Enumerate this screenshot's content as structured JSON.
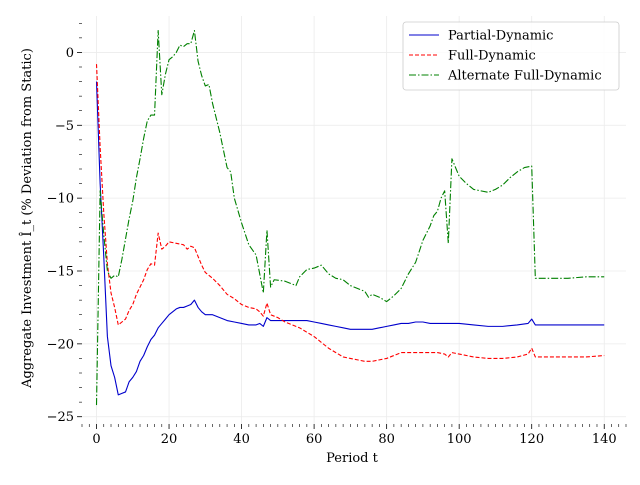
{
  "chart_data": {
    "type": "line",
    "title": "",
    "xlabel": "Period t",
    "ylabel": "Aggregate Investment Î_t (% Deviation from Static)",
    "xlim": [
      -4,
      146
    ],
    "ylim": [
      -25.5,
      2.5
    ],
    "xticks": [
      0,
      20,
      40,
      60,
      80,
      100,
      120,
      140
    ],
    "yticks": [
      -25,
      -20,
      -15,
      -10,
      -5,
      0
    ],
    "grid": true,
    "legend_position": "top-right",
    "series": [
      {
        "name": "Partial-Dynamic",
        "color": "#0000cc",
        "style": "solid",
        "points": [
          [
            0,
            -2
          ],
          [
            1,
            -9
          ],
          [
            2,
            -14
          ],
          [
            3,
            -19.5
          ],
          [
            4,
            -21.5
          ],
          [
            5,
            -22.3
          ],
          [
            6,
            -23.5
          ],
          [
            7,
            -23.4
          ],
          [
            8,
            -23.3
          ],
          [
            9,
            -22.6
          ],
          [
            10,
            -22.3
          ],
          [
            11,
            -21.9
          ],
          [
            12,
            -21.2
          ],
          [
            13,
            -20.8
          ],
          [
            14,
            -20.2
          ],
          [
            15,
            -19.7
          ],
          [
            16,
            -19.4
          ],
          [
            17,
            -18.9
          ],
          [
            18,
            -18.6
          ],
          [
            19,
            -18.3
          ],
          [
            20,
            -18.0
          ],
          [
            21,
            -17.8
          ],
          [
            22,
            -17.6
          ],
          [
            23,
            -17.5
          ],
          [
            24,
            -17.5
          ],
          [
            25,
            -17.4
          ],
          [
            26,
            -17.3
          ],
          [
            27,
            -17.0
          ],
          [
            28,
            -17.5
          ],
          [
            29,
            -17.8
          ],
          [
            30,
            -18.0
          ],
          [
            32,
            -18.0
          ],
          [
            34,
            -18.2
          ],
          [
            36,
            -18.4
          ],
          [
            38,
            -18.5
          ],
          [
            40,
            -18.6
          ],
          [
            42,
            -18.7
          ],
          [
            44,
            -18.7
          ],
          [
            45,
            -18.6
          ],
          [
            46,
            -18.8
          ],
          [
            47,
            -18.2
          ],
          [
            48,
            -18.4
          ],
          [
            50,
            -18.4
          ],
          [
            52,
            -18.4
          ],
          [
            54,
            -18.4
          ],
          [
            56,
            -18.4
          ],
          [
            58,
            -18.4
          ],
          [
            60,
            -18.5
          ],
          [
            62,
            -18.6
          ],
          [
            64,
            -18.7
          ],
          [
            66,
            -18.8
          ],
          [
            68,
            -18.9
          ],
          [
            70,
            -19.0
          ],
          [
            72,
            -19.0
          ],
          [
            74,
            -19.0
          ],
          [
            76,
            -19.0
          ],
          [
            78,
            -18.9
          ],
          [
            80,
            -18.8
          ],
          [
            82,
            -18.7
          ],
          [
            84,
            -18.6
          ],
          [
            86,
            -18.6
          ],
          [
            88,
            -18.5
          ],
          [
            90,
            -18.5
          ],
          [
            92,
            -18.6
          ],
          [
            94,
            -18.6
          ],
          [
            96,
            -18.6
          ],
          [
            98,
            -18.6
          ],
          [
            100,
            -18.6
          ],
          [
            104,
            -18.7
          ],
          [
            108,
            -18.8
          ],
          [
            112,
            -18.8
          ],
          [
            116,
            -18.7
          ],
          [
            119,
            -18.6
          ],
          [
            120,
            -18.3
          ],
          [
            121,
            -18.7
          ],
          [
            125,
            -18.7
          ],
          [
            130,
            -18.7
          ],
          [
            135,
            -18.7
          ],
          [
            140,
            -18.7
          ]
        ]
      },
      {
        "name": "Full-Dynamic",
        "color": "#ff0000",
        "style": "dashed",
        "points": [
          [
            0,
            -0.8
          ],
          [
            1,
            -6.5
          ],
          [
            2,
            -11
          ],
          [
            3,
            -14.5
          ],
          [
            4,
            -16.5
          ],
          [
            5,
            -17.5
          ],
          [
            6,
            -18.7
          ],
          [
            7,
            -18.5
          ],
          [
            8,
            -18.3
          ],
          [
            9,
            -17.7
          ],
          [
            10,
            -17.3
          ],
          [
            11,
            -16.6
          ],
          [
            12,
            -16.1
          ],
          [
            13,
            -15.6
          ],
          [
            14,
            -14.9
          ],
          [
            15,
            -14.5
          ],
          [
            16,
            -14.6
          ],
          [
            17,
            -12.4
          ],
          [
            18,
            -13.5
          ],
          [
            19,
            -13.3
          ],
          [
            20,
            -13.0
          ],
          [
            22,
            -13.1
          ],
          [
            24,
            -13.2
          ],
          [
            25,
            -13.5
          ],
          [
            26,
            -13.3
          ],
          [
            27,
            -13.4
          ],
          [
            28,
            -14.0
          ],
          [
            29,
            -14.6
          ],
          [
            30,
            -15.1
          ],
          [
            32,
            -15.5
          ],
          [
            34,
            -16.0
          ],
          [
            36,
            -16.6
          ],
          [
            38,
            -16.9
          ],
          [
            40,
            -17.3
          ],
          [
            42,
            -17.5
          ],
          [
            44,
            -17.6
          ],
          [
            45,
            -17.8
          ],
          [
            46,
            -18.1
          ],
          [
            47,
            -17.2
          ],
          [
            48,
            -18.0
          ],
          [
            50,
            -18.2
          ],
          [
            52,
            -18.5
          ],
          [
            54,
            -18.7
          ],
          [
            56,
            -18.9
          ],
          [
            58,
            -19.2
          ],
          [
            60,
            -19.5
          ],
          [
            62,
            -19.9
          ],
          [
            64,
            -20.3
          ],
          [
            66,
            -20.6
          ],
          [
            68,
            -20.9
          ],
          [
            70,
            -21.0
          ],
          [
            72,
            -21.1
          ],
          [
            74,
            -21.2
          ],
          [
            76,
            -21.2
          ],
          [
            78,
            -21.1
          ],
          [
            80,
            -21.0
          ],
          [
            82,
            -20.8
          ],
          [
            84,
            -20.6
          ],
          [
            86,
            -20.6
          ],
          [
            88,
            -20.6
          ],
          [
            90,
            -20.6
          ],
          [
            92,
            -20.6
          ],
          [
            94,
            -20.6
          ],
          [
            96,
            -20.7
          ],
          [
            97,
            -20.9
          ],
          [
            98,
            -20.6
          ],
          [
            100,
            -20.7
          ],
          [
            104,
            -20.9
          ],
          [
            108,
            -21.0
          ],
          [
            112,
            -21.0
          ],
          [
            116,
            -20.9
          ],
          [
            119,
            -20.7
          ],
          [
            120,
            -20.3
          ],
          [
            121,
            -20.9
          ],
          [
            125,
            -20.9
          ],
          [
            130,
            -20.9
          ],
          [
            135,
            -20.9
          ],
          [
            140,
            -20.8
          ]
        ]
      },
      {
        "name": "Alternate Full-Dynamic",
        "color": "#008000",
        "style": "dashdot",
        "points": [
          [
            0,
            -24.2
          ],
          [
            1,
            -9.5
          ],
          [
            2,
            -12.5
          ],
          [
            3,
            -15.0
          ],
          [
            4,
            -15.5
          ],
          [
            5,
            -15.3
          ],
          [
            6,
            -15.4
          ],
          [
            7,
            -14.2
          ],
          [
            8,
            -12.8
          ],
          [
            9,
            -11.4
          ],
          [
            10,
            -10.2
          ],
          [
            11,
            -8.6
          ],
          [
            12,
            -7.3
          ],
          [
            13,
            -5.9
          ],
          [
            14,
            -4.7
          ],
          [
            15,
            -4.3
          ],
          [
            16,
            -4.3
          ],
          [
            17,
            1.5
          ],
          [
            18,
            -2.9
          ],
          [
            19,
            -1.5
          ],
          [
            20,
            -0.5
          ],
          [
            21,
            -0.3
          ],
          [
            22,
            0.0
          ],
          [
            23,
            0.5
          ],
          [
            24,
            0.4
          ],
          [
            25,
            0.6
          ],
          [
            26,
            0.6
          ],
          [
            27,
            1.5
          ],
          [
            28,
            -0.6
          ],
          [
            29,
            -1.6
          ],
          [
            30,
            -2.3
          ],
          [
            31,
            -2.2
          ],
          [
            32,
            -3.5
          ],
          [
            34,
            -5.5
          ],
          [
            36,
            -7.9
          ],
          [
            37,
            -8.2
          ],
          [
            38,
            -10.0
          ],
          [
            40,
            -11.7
          ],
          [
            42,
            -13.2
          ],
          [
            44,
            -13.9
          ],
          [
            45,
            -15.2
          ],
          [
            46,
            -16.5
          ],
          [
            47,
            -12.2
          ],
          [
            48,
            -16.1
          ],
          [
            49,
            -15.6
          ],
          [
            52,
            -15.7
          ],
          [
            54,
            -15.9
          ],
          [
            55,
            -16.0
          ],
          [
            56,
            -15.4
          ],
          [
            58,
            -14.9
          ],
          [
            60,
            -14.8
          ],
          [
            62,
            -14.6
          ],
          [
            64,
            -15.2
          ],
          [
            66,
            -15.5
          ],
          [
            68,
            -15.6
          ],
          [
            70,
            -16.0
          ],
          [
            72,
            -16.2
          ],
          [
            74,
            -16.4
          ],
          [
            75,
            -16.8
          ],
          [
            76,
            -16.6
          ],
          [
            78,
            -16.8
          ],
          [
            80,
            -17.1
          ],
          [
            82,
            -16.7
          ],
          [
            84,
            -16.2
          ],
          [
            86,
            -15.2
          ],
          [
            88,
            -14.4
          ],
          [
            90,
            -12.9
          ],
          [
            92,
            -11.9
          ],
          [
            93,
            -11.2
          ],
          [
            94,
            -10.9
          ],
          [
            95,
            -10.0
          ],
          [
            96,
            -9.5
          ],
          [
            97,
            -13.1
          ],
          [
            98,
            -7.3
          ],
          [
            100,
            -8.5
          ],
          [
            102,
            -9.0
          ],
          [
            104,
            -9.4
          ],
          [
            106,
            -9.5
          ],
          [
            108,
            -9.6
          ],
          [
            110,
            -9.4
          ],
          [
            112,
            -9.1
          ],
          [
            114,
            -8.6
          ],
          [
            116,
            -8.2
          ],
          [
            118,
            -7.9
          ],
          [
            120,
            -7.8
          ],
          [
            121,
            -15.5
          ],
          [
            125,
            -15.5
          ],
          [
            130,
            -15.5
          ],
          [
            135,
            -15.4
          ],
          [
            140,
            -15.4
          ]
        ]
      }
    ]
  }
}
